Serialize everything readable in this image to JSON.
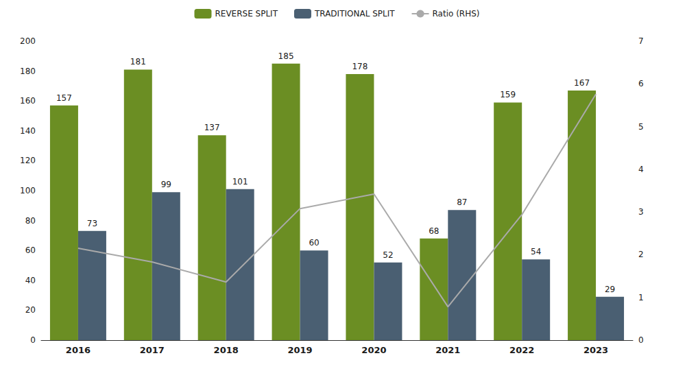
{
  "chart_data": {
    "type": "bar",
    "categories": [
      "2016",
      "2017",
      "2018",
      "2019",
      "2020",
      "2021",
      "2022",
      "2023"
    ],
    "series": [
      {
        "name": "REVERSE SPLIT",
        "type": "bar",
        "color": "#6b8e23",
        "data_labels": true,
        "values": [
          157,
          181,
          137,
          185,
          178,
          68,
          159,
          167
        ]
      },
      {
        "name": "TRADITIONAL SPLIT",
        "type": "bar",
        "color": "#4a5f72",
        "data_labels": true,
        "values": [
          73,
          99,
          101,
          60,
          52,
          87,
          54,
          29
        ]
      },
      {
        "name": "Ratio (RHS)",
        "type": "line",
        "axis": "y2",
        "color": "#aaaaaa",
        "values": [
          2.15,
          1.83,
          1.36,
          3.08,
          3.42,
          0.78,
          2.94,
          5.76
        ]
      }
    ],
    "ylim": [
      0,
      200
    ],
    "yticks": [
      0,
      20,
      40,
      60,
      80,
      100,
      120,
      140,
      160,
      180,
      200
    ],
    "y2lim": [
      0,
      7
    ],
    "y2ticks": [
      0,
      1,
      2,
      3,
      4,
      5,
      6,
      7
    ],
    "grid": false,
    "legend": "top"
  }
}
